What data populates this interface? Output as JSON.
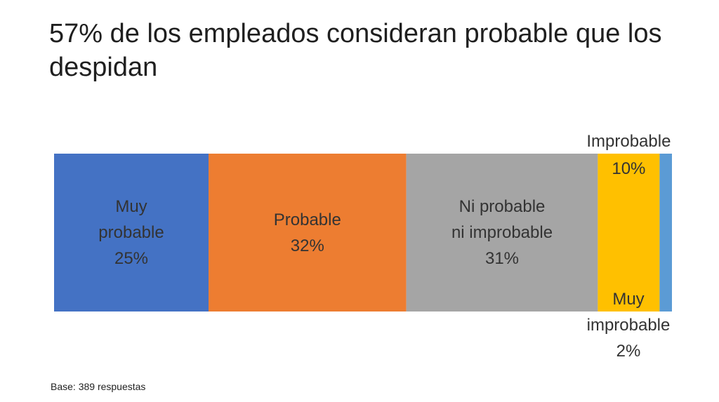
{
  "slide": {
    "title": "57% de los empleados consideran probable que los despidan",
    "footnote": "Base: 389 respuestas"
  },
  "chart_data": {
    "type": "bar",
    "orientation": "horizontal-stacked",
    "title": "57% de los empleados consideran probable que los despidan",
    "categories": [
      "Muy probable",
      "Probable",
      "Ni probable ni improbable",
      "Improbable",
      "Muy improbable"
    ],
    "values": [
      25,
      32,
      31,
      10,
      2
    ],
    "unit": "%",
    "colors": [
      "#4472C4",
      "#ED7D31",
      "#A5A5A5",
      "#FFC000",
      "#5B9BD5"
    ],
    "labels": [
      {
        "name": "Muy\nprobable",
        "value": "25%"
      },
      {
        "name": "Probable",
        "value": "32%"
      },
      {
        "name": "Ni probable\nni improbable",
        "value": "31%"
      },
      {
        "name": "Improbable",
        "value": "10%"
      },
      {
        "name": "Muy\nimprobable",
        "value": "2%"
      }
    ],
    "xlim": [
      0,
      100
    ],
    "legend": "none",
    "grid": false
  }
}
